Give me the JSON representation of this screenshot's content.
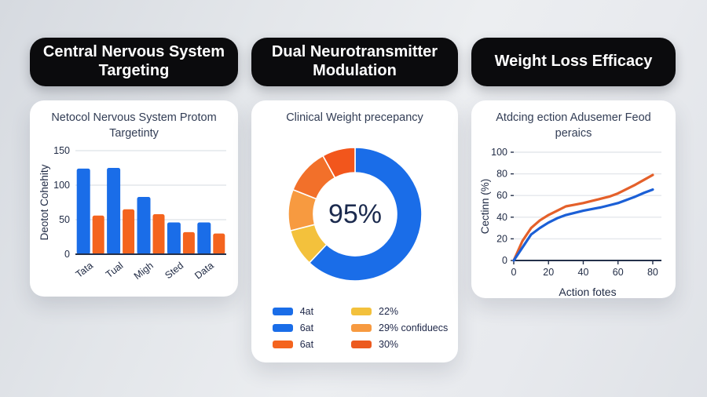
{
  "panels": [
    {
      "header": "Central Nervous System Targeting"
    },
    {
      "header": "Dual Neurotransmitter Modulation"
    },
    {
      "header": "Weight Loss Efficacy"
    }
  ],
  "colors": {
    "pill_bg": "#0b0b0d",
    "pill_text": "#ffffff",
    "card_bg": "#ffffff",
    "title_text": "#323d55",
    "axis_text": "#1f2a44",
    "axis_line": "#24304a",
    "gridline": "#e4e7ec",
    "blue": "#1a6de8",
    "orange": "#f4641e"
  },
  "chart_data": [
    {
      "id": "bar-chart",
      "type": "bar",
      "title": "Netocol Nervous System Protom Targetinty",
      "ylabel": "Deotot Cohehity",
      "categories": [
        "Tata",
        "Tual",
        "Migh",
        "Sted",
        "Data"
      ],
      "series": [
        {
          "name": "blue",
          "color": "#1a6de8",
          "values": [
            124,
            125,
            83,
            46,
            46
          ]
        },
        {
          "name": "orange",
          "color": "#f4641e",
          "values": [
            56,
            65,
            58,
            32,
            30
          ]
        }
      ],
      "yticks": [
        0,
        50,
        100,
        150
      ],
      "ylim": [
        0,
        150
      ],
      "grid": true,
      "legend_position": "none"
    },
    {
      "id": "donut-chart",
      "type": "pie",
      "title": "Clinical Weight precepancy",
      "center_label": "95%",
      "slices": [
        {
          "label": "4at",
          "value": 62,
          "color": "#1a6de8"
        },
        {
          "label": "22%",
          "value": 9,
          "color": "#f3c13c"
        },
        {
          "label": "29% confiduecs",
          "value": 10,
          "color": "#f79a40"
        },
        {
          "label": "30%",
          "value": 11,
          "color": "#f2702a"
        },
        {
          "label": "6at",
          "value": 8,
          "color": "#f2561c"
        }
      ],
      "legend_position": "bottom",
      "legend": [
        {
          "label": "4at",
          "color": "#1a6de8"
        },
        {
          "label": "6at",
          "color": "#1a6de8"
        },
        {
          "label": "6at",
          "color": "#f4641e"
        },
        {
          "label": "22%",
          "color": "#f3c13c"
        },
        {
          "label": "29% confiduecs",
          "color": "#f79a40"
        },
        {
          "label": "30%",
          "color": "#ec5a1f"
        }
      ]
    },
    {
      "id": "line-chart",
      "type": "line",
      "title": "Atdcing ection Adusemer Feod peraics",
      "xlabel": "Action fotes",
      "ylabel": "Cectinn (%)",
      "x": [
        0,
        5,
        10,
        15,
        20,
        25,
        30,
        35,
        40,
        45,
        50,
        55,
        60,
        65,
        70,
        75,
        80
      ],
      "series": [
        {
          "name": "orange",
          "color": "#e4602a",
          "values": [
            0,
            18,
            30,
            37,
            42,
            46,
            50,
            51.5,
            53,
            55,
            57,
            59,
            62,
            66,
            70,
            74.5,
            79
          ]
        },
        {
          "name": "blue",
          "color": "#1b5fd6",
          "values": [
            0,
            12,
            24,
            30,
            35,
            39,
            42,
            44,
            46,
            47.5,
            49,
            51,
            53,
            56,
            59,
            62.5,
            65.5
          ]
        }
      ],
      "xticks": [
        0,
        20,
        40,
        60,
        80
      ],
      "yticks": [
        0,
        20,
        40,
        60,
        80,
        100
      ],
      "xlim": [
        0,
        85
      ],
      "ylim": [
        0,
        100
      ],
      "grid": true,
      "legend_position": "none"
    }
  ]
}
